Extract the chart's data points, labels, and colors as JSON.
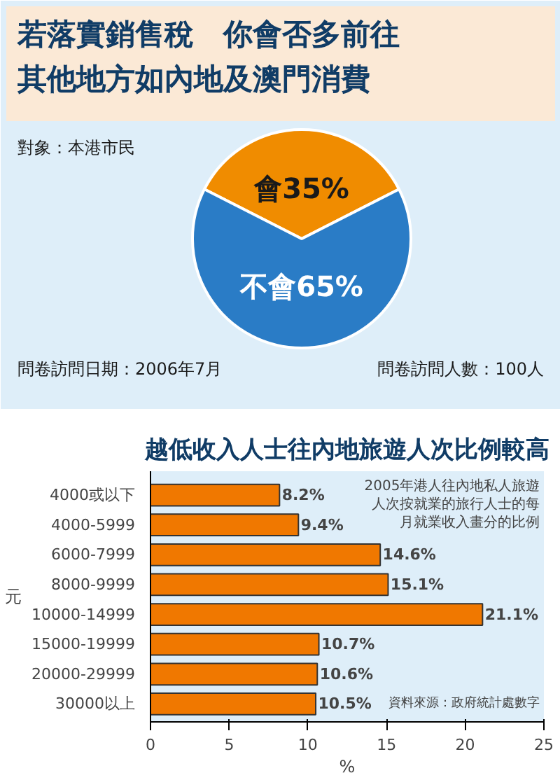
{
  "chart_data": [
    {
      "type": "pie",
      "title": "若落實銷售稅　你會否多前往其他地方如內地及澳門消費",
      "categories": [
        "會",
        "不會"
      ],
      "values": [
        35,
        65
      ],
      "colors": [
        "#f08c00",
        "#2a7cc6"
      ],
      "value_labels": [
        "35%",
        "65%"
      ],
      "annotations": [
        "對象：本港市民",
        "問卷訪問日期：2006年7月",
        "問卷訪問人數：100人"
      ]
    },
    {
      "type": "bar",
      "orientation": "horizontal",
      "title": "越低收入人士往內地旅遊人次比例較高",
      "ylabel": "元",
      "xlabel": "%",
      "categories": [
        "4000或以下",
        "4000-5999",
        "6000-7999",
        "8000-9999",
        "10000-14999",
        "15000-19999",
        "20000-29999",
        "30000以上"
      ],
      "values": [
        8.2,
        9.4,
        14.6,
        15.1,
        21.1,
        10.7,
        10.6,
        10.5
      ],
      "color": "#f07800",
      "value_labels": [
        "8.2%",
        "9.4%",
        "14.6%",
        "15.1%",
        "21.1%",
        "10.7%",
        "10.6%",
        "10.5%"
      ],
      "xlim": [
        0,
        25
      ],
      "xticks": [
        0,
        5,
        10,
        15,
        20,
        25
      ],
      "annotations": [
        "2005年港人往內地私人旅遊人次按就業的旅行人士的每月就業收入畫分的比例",
        "資料來源：政府統計處數字"
      ]
    }
  ]
}
